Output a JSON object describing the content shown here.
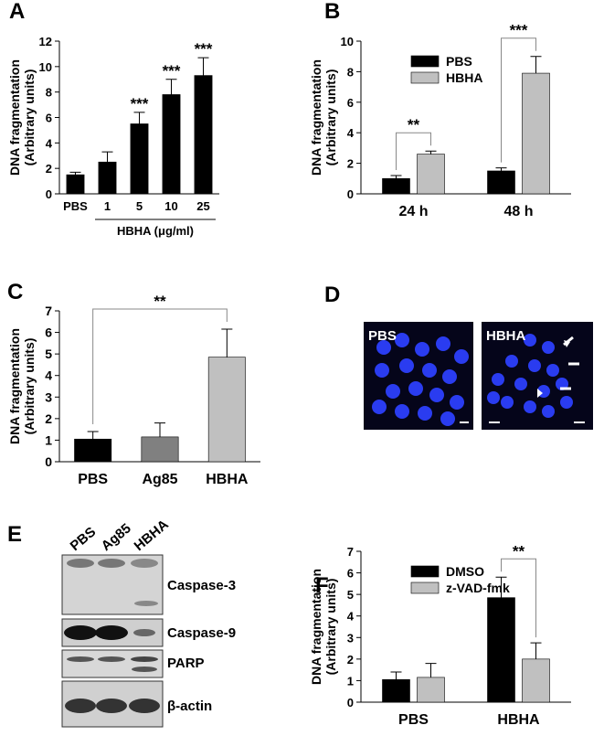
{
  "chart_data": [
    {
      "type": "bar",
      "panel_label": "A",
      "ylabel": [
        "DNA fragmentation",
        "(Arbitrary units)"
      ],
      "categories": [
        "PBS",
        "1",
        "5",
        "10",
        "25"
      ],
      "xlabel": "HBHA (μg/ml)",
      "values": [
        1.5,
        2.5,
        5.5,
        7.8,
        9.3
      ],
      "errors": [
        0.2,
        0.8,
        0.9,
        1.2,
        1.4
      ],
      "color": "#000000",
      "annotations": [
        null,
        null,
        "***",
        "***",
        "***"
      ],
      "ylim": [
        0,
        12
      ],
      "yticks": [
        0,
        2,
        4,
        6,
        8,
        10,
        12
      ]
    },
    {
      "type": "bar",
      "panel_label": "B",
      "ylabel": [
        "DNA fragmentation",
        "(Arbitrary units)"
      ],
      "categories": [
        "24 h",
        "48 h"
      ],
      "series": [
        {
          "name": "PBS",
          "color": "#000000",
          "values": [
            1.0,
            1.5
          ],
          "errors": [
            0.2,
            0.2
          ]
        },
        {
          "name": "HBHA",
          "color": "#c0c0c0",
          "values": [
            2.6,
            7.9
          ],
          "errors": [
            0.2,
            1.1
          ]
        }
      ],
      "annotations": [
        "**",
        "***"
      ],
      "legend": "upper left",
      "ylim": [
        0,
        10
      ],
      "yticks": [
        0,
        2,
        4,
        6,
        8,
        10
      ]
    },
    {
      "type": "bar",
      "panel_label": "C",
      "ylabel": [
        "DNA fragmentation",
        "(Arbitrary units)"
      ],
      "categories": [
        "PBS",
        "Ag85",
        "HBHA"
      ],
      "values": [
        1.05,
        1.15,
        4.85
      ],
      "errors": [
        0.35,
        0.65,
        1.3
      ],
      "colors": [
        "#000000",
        "#808080",
        "#c0c0c0"
      ],
      "annotation": "**",
      "ylim": [
        0,
        7
      ],
      "yticks": [
        0,
        1,
        2,
        3,
        4,
        5,
        6,
        7
      ]
    },
    {
      "type": "bar",
      "panel_label": "F",
      "ylabel": [
        "DNA fragmentation",
        "(Arbitrary units)"
      ],
      "categories": [
        "PBS",
        "HBHA"
      ],
      "series": [
        {
          "name": "DMSO",
          "color": "#000000",
          "values": [
            1.05,
            4.85
          ],
          "errors": [
            0.35,
            0.95
          ]
        },
        {
          "name": "z-VAD-fmk",
          "color": "#c0c0c0",
          "values": [
            1.15,
            2.0
          ],
          "errors": [
            0.65,
            0.75
          ]
        }
      ],
      "annotations": [
        null,
        "**"
      ],
      "legend": "upper left",
      "ylim": [
        0,
        7
      ],
      "yticks": [
        0,
        1,
        2,
        3,
        4,
        5,
        6,
        7
      ]
    }
  ],
  "panel_d": {
    "panel_label": "D",
    "images": [
      "PBS",
      "HBHA"
    ]
  },
  "panel_e": {
    "panel_label": "E",
    "lanes": [
      "PBS",
      "Ag85",
      "HBHA"
    ],
    "bands": [
      "Caspase-3",
      "Caspase-9",
      "PARP",
      "β-actin"
    ]
  }
}
